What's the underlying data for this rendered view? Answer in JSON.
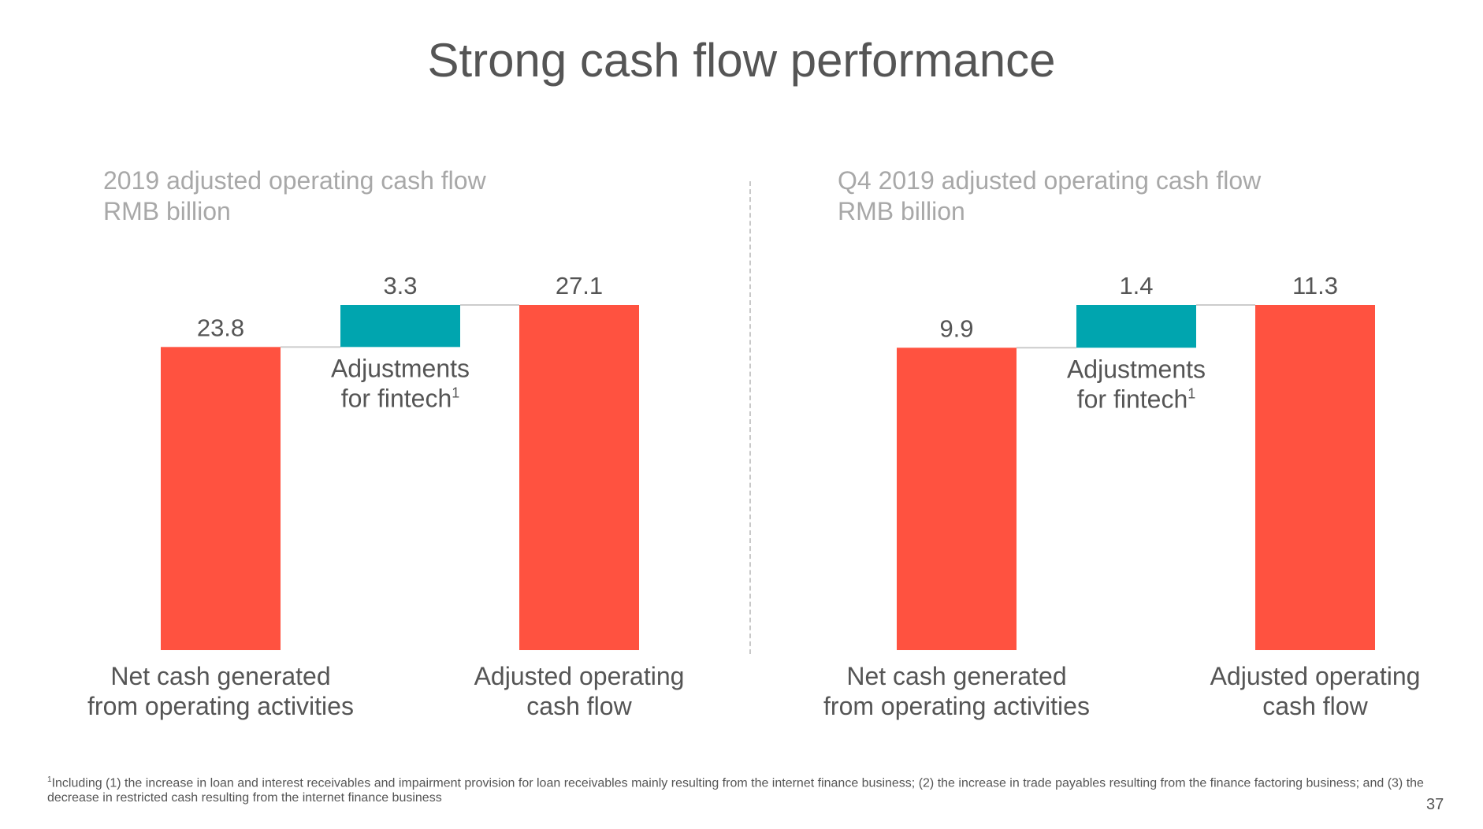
{
  "page": {
    "title": "Strong cash flow performance",
    "footnote_marker": "1",
    "footnote": "Including (1) the increase in loan and interest receivables and impairment provision for loan receivables mainly resulting from the internet finance business; (2) the increase in trade payables resulting from the finance factoring business; and (3) the decrease in restricted cash resulting from the internet finance business",
    "page_number": "37"
  },
  "colors": {
    "base_bar": "#FF5240",
    "adjustment_bar": "#00A5AF",
    "connector": "#cccccc",
    "label": "#555555",
    "subtitle": "#a8a8a8"
  },
  "chart_data": [
    {
      "type": "bar",
      "subtype": "waterfall",
      "title": "2019 adjusted operating cash flow",
      "ylabel": "RMB billion",
      "ylim": [
        0,
        27.1
      ],
      "categories": [
        "Net cash generated from operating activities",
        "Adjustments for fintech",
        "Adjusted operating cash flow"
      ],
      "category_lines": [
        [
          "Net cash generated",
          "from operating activities"
        ],
        [
          "Adjustments",
          "for fintech"
        ],
        [
          "Adjusted operating",
          "cash flow"
        ]
      ],
      "category_superscripts": [
        "",
        "1",
        ""
      ],
      "values": [
        23.8,
        3.3,
        27.1
      ],
      "value_labels": [
        "23.8",
        "3.3",
        "27.1"
      ],
      "kinds": [
        "total",
        "delta",
        "total"
      ]
    },
    {
      "type": "bar",
      "subtype": "waterfall",
      "title": "Q4 2019 adjusted operating cash flow",
      "ylabel": "RMB billion",
      "ylim": [
        0,
        11.3
      ],
      "categories": [
        "Net cash generated from operating activities",
        "Adjustments for fintech",
        "Adjusted operating cash flow"
      ],
      "category_lines": [
        [
          "Net cash generated",
          "from operating activities"
        ],
        [
          "Adjustments",
          "for fintech"
        ],
        [
          "Adjusted operating",
          "cash flow"
        ]
      ],
      "category_superscripts": [
        "",
        "1",
        ""
      ],
      "values": [
        9.9,
        1.4,
        11.3
      ],
      "value_labels": [
        "9.9",
        "1.4",
        "11.3"
      ],
      "kinds": [
        "total",
        "delta",
        "total"
      ]
    }
  ]
}
